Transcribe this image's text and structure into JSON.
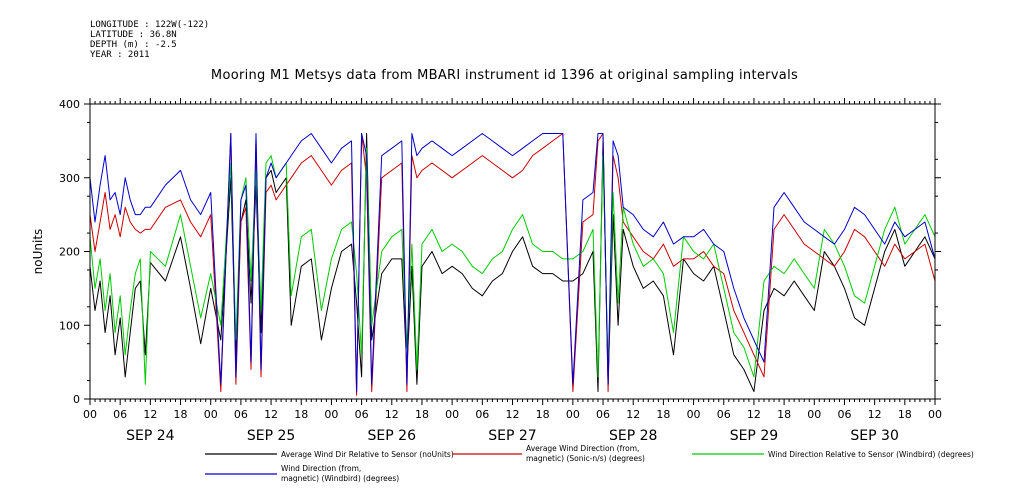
{
  "header": {
    "meta_lines": [
      "LONGITUDE : 122W(-122)",
      "LATITUDE : 36.8N",
      "DEPTH (m) : -2.5",
      "YEAR : 2011"
    ],
    "title": "Mooring M1 Metsys data from MBARI instrument id 1396 at original sampling intervals"
  },
  "chart_data": {
    "type": "line",
    "ylabel": "noUnits",
    "ylim": [
      0,
      400
    ],
    "yticks": [
      0,
      100,
      200,
      300,
      400
    ],
    "x_unit": "hours since SEP 24 00:00",
    "xlim": [
      0,
      168
    ],
    "hour_tick_labels": [
      "00",
      "06",
      "12",
      "18"
    ],
    "day_labels": [
      "SEP 24",
      "SEP 25",
      "SEP 26",
      "SEP 27",
      "SEP 28",
      "SEP 29",
      "SEP 30"
    ],
    "grid": false,
    "series": [
      {
        "name": "Average Wind Dir Relative to Sensor (noUnits)",
        "color": "#000000",
        "x": [
          0,
          1,
          2,
          3,
          4,
          5,
          6,
          7,
          8,
          9,
          10,
          11,
          12,
          15,
          18,
          20,
          22,
          24,
          26,
          28,
          29,
          30,
          31,
          32,
          33,
          34,
          35,
          36,
          37,
          38,
          39,
          40,
          42,
          44,
          46,
          48,
          50,
          52,
          53,
          54,
          55,
          56,
          58,
          60,
          62,
          63,
          64,
          65,
          66,
          68,
          70,
          72,
          74,
          76,
          78,
          80,
          82,
          84,
          86,
          88,
          90,
          92,
          94,
          96,
          98,
          100,
          101,
          102,
          103,
          104,
          105,
          106,
          108,
          110,
          112,
          114,
          116,
          118,
          120,
          122,
          124,
          126,
          128,
          130,
          132,
          134,
          136,
          138,
          140,
          142,
          144,
          146,
          148,
          150,
          152,
          154,
          156,
          158,
          160,
          162,
          164,
          166,
          168
        ],
        "y": [
          180,
          120,
          160,
          90,
          140,
          60,
          110,
          30,
          90,
          150,
          160,
          60,
          185,
          160,
          220,
          150,
          75,
          150,
          80,
          300,
          60,
          240,
          270,
          130,
          290,
          90,
          300,
          310,
          280,
          290,
          300,
          100,
          180,
          190,
          80,
          150,
          200,
          210,
          130,
          30,
          360,
          80,
          170,
          190,
          190,
          40,
          180,
          20,
          180,
          200,
          170,
          180,
          170,
          150,
          140,
          160,
          170,
          200,
          220,
          180,
          170,
          170,
          160,
          160,
          170,
          200,
          10,
          350,
          20,
          250,
          100,
          230,
          180,
          150,
          160,
          140,
          60,
          190,
          170,
          160,
          180,
          120,
          60,
          40,
          10,
          120,
          150,
          140,
          160,
          140,
          120,
          200,
          180,
          150,
          110,
          100,
          150,
          200,
          230,
          180,
          200,
          220,
          190
        ]
      },
      {
        "name": "Average Wind Direction (from, magnetic) (Sonic-n/s) (degrees)",
        "color": "#cc0000",
        "x": [
          0,
          1,
          2,
          3,
          4,
          5,
          6,
          7,
          8,
          9,
          10,
          11,
          12,
          15,
          18,
          20,
          22,
          24,
          26,
          28,
          29,
          30,
          31,
          32,
          33,
          34,
          35,
          36,
          37,
          38,
          39,
          40,
          42,
          44,
          46,
          48,
          50,
          52,
          53,
          54,
          55,
          56,
          58,
          60,
          62,
          63,
          64,
          65,
          66,
          68,
          70,
          72,
          74,
          76,
          78,
          80,
          82,
          84,
          86,
          88,
          90,
          92,
          94,
          96,
          98,
          100,
          101,
          102,
          103,
          104,
          105,
          106,
          108,
          110,
          112,
          114,
          116,
          118,
          120,
          122,
          124,
          126,
          128,
          130,
          132,
          134,
          136,
          138,
          140,
          142,
          144,
          146,
          148,
          150,
          152,
          154,
          156,
          158,
          160,
          162,
          164,
          166,
          168
        ],
        "y": [
          250,
          200,
          240,
          280,
          230,
          250,
          220,
          260,
          240,
          230,
          225,
          230,
          230,
          260,
          270,
          240,
          220,
          250,
          10,
          360,
          20,
          240,
          260,
          40,
          350,
          30,
          280,
          290,
          270,
          280,
          290,
          300,
          320,
          330,
          310,
          290,
          310,
          320,
          5,
          360,
          300,
          10,
          300,
          310,
          320,
          10,
          330,
          300,
          310,
          320,
          310,
          300,
          310,
          320,
          330,
          320,
          310,
          300,
          310,
          330,
          340,
          350,
          360,
          10,
          240,
          250,
          350,
          360,
          10,
          330,
          300,
          240,
          220,
          200,
          190,
          210,
          180,
          190,
          190,
          200,
          180,
          170,
          120,
          90,
          60,
          30,
          230,
          250,
          230,
          210,
          200,
          190,
          180,
          200,
          230,
          220,
          200,
          180,
          210,
          190,
          200,
          210,
          160
        ]
      },
      {
        "name": "Wind Direction Relative to Sensor (Windbird) (degrees)",
        "color": "#00cc00",
        "x": [
          0,
          1,
          2,
          3,
          4,
          5,
          6,
          7,
          8,
          9,
          10,
          11,
          12,
          15,
          18,
          20,
          22,
          24,
          26,
          28,
          29,
          30,
          31,
          32,
          33,
          34,
          35,
          36,
          37,
          38,
          39,
          40,
          42,
          44,
          46,
          48,
          50,
          52,
          53,
          54,
          55,
          56,
          58,
          60,
          62,
          63,
          64,
          65,
          66,
          68,
          70,
          72,
          74,
          76,
          78,
          80,
          82,
          84,
          86,
          88,
          90,
          92,
          94,
          96,
          98,
          100,
          101,
          102,
          103,
          104,
          105,
          106,
          108,
          110,
          112,
          114,
          116,
          118,
          120,
          122,
          124,
          126,
          128,
          130,
          132,
          134,
          136,
          138,
          140,
          142,
          144,
          146,
          148,
          150,
          152,
          154,
          156,
          158,
          160,
          162,
          164,
          166,
          168
        ],
        "y": [
          220,
          150,
          190,
          120,
          170,
          90,
          140,
          60,
          120,
          170,
          190,
          20,
          200,
          180,
          250,
          180,
          110,
          170,
          100,
          320,
          80,
          270,
          300,
          160,
          310,
          120,
          320,
          330,
          300,
          310,
          320,
          140,
          220,
          230,
          120,
          190,
          230,
          240,
          170,
          60,
          340,
          100,
          200,
          220,
          230,
          70,
          210,
          40,
          210,
          230,
          200,
          210,
          200,
          180,
          170,
          190,
          200,
          230,
          250,
          210,
          200,
          200,
          190,
          190,
          200,
          230,
          30,
          330,
          40,
          280,
          130,
          260,
          210,
          180,
          190,
          170,
          90,
          220,
          200,
          190,
          210,
          150,
          90,
          70,
          30,
          160,
          180,
          170,
          190,
          170,
          150,
          230,
          210,
          180,
          140,
          130,
          180,
          230,
          260,
          210,
          230,
          250,
          220
        ]
      },
      {
        "name": "Wind Direction (from, magnetic) (Windbird) (degrees)",
        "color": "#0000cc",
        "x": [
          0,
          1,
          2,
          3,
          4,
          5,
          6,
          7,
          8,
          9,
          10,
          11,
          12,
          15,
          18,
          20,
          22,
          24,
          26,
          28,
          29,
          30,
          31,
          32,
          33,
          34,
          35,
          36,
          37,
          38,
          39,
          40,
          42,
          44,
          46,
          48,
          50,
          52,
          53,
          54,
          55,
          56,
          58,
          60,
          62,
          63,
          64,
          65,
          66,
          68,
          70,
          72,
          74,
          76,
          78,
          80,
          82,
          84,
          86,
          88,
          90,
          92,
          94,
          96,
          98,
          100,
          101,
          102,
          103,
          104,
          105,
          106,
          108,
          110,
          112,
          114,
          116,
          118,
          120,
          122,
          124,
          126,
          128,
          130,
          132,
          134,
          136,
          138,
          140,
          142,
          144,
          146,
          148,
          150,
          152,
          154,
          156,
          158,
          160,
          162,
          164,
          166,
          168
        ],
        "y": [
          300,
          240,
          290,
          330,
          270,
          280,
          250,
          300,
          270,
          250,
          250,
          260,
          260,
          290,
          310,
          270,
          250,
          280,
          20,
          360,
          30,
          270,
          290,
          50,
          360,
          40,
          300,
          320,
          300,
          310,
          320,
          330,
          350,
          360,
          340,
          320,
          340,
          350,
          10,
          360,
          330,
          20,
          330,
          340,
          350,
          20,
          360,
          330,
          340,
          350,
          340,
          330,
          340,
          350,
          360,
          350,
          340,
          330,
          340,
          350,
          360,
          360,
          360,
          20,
          270,
          280,
          360,
          360,
          20,
          350,
          330,
          260,
          250,
          230,
          220,
          240,
          210,
          220,
          220,
          230,
          210,
          200,
          150,
          110,
          80,
          50,
          260,
          280,
          260,
          240,
          230,
          220,
          210,
          230,
          260,
          250,
          230,
          210,
          240,
          220,
          230,
          240,
          190
        ]
      }
    ]
  }
}
